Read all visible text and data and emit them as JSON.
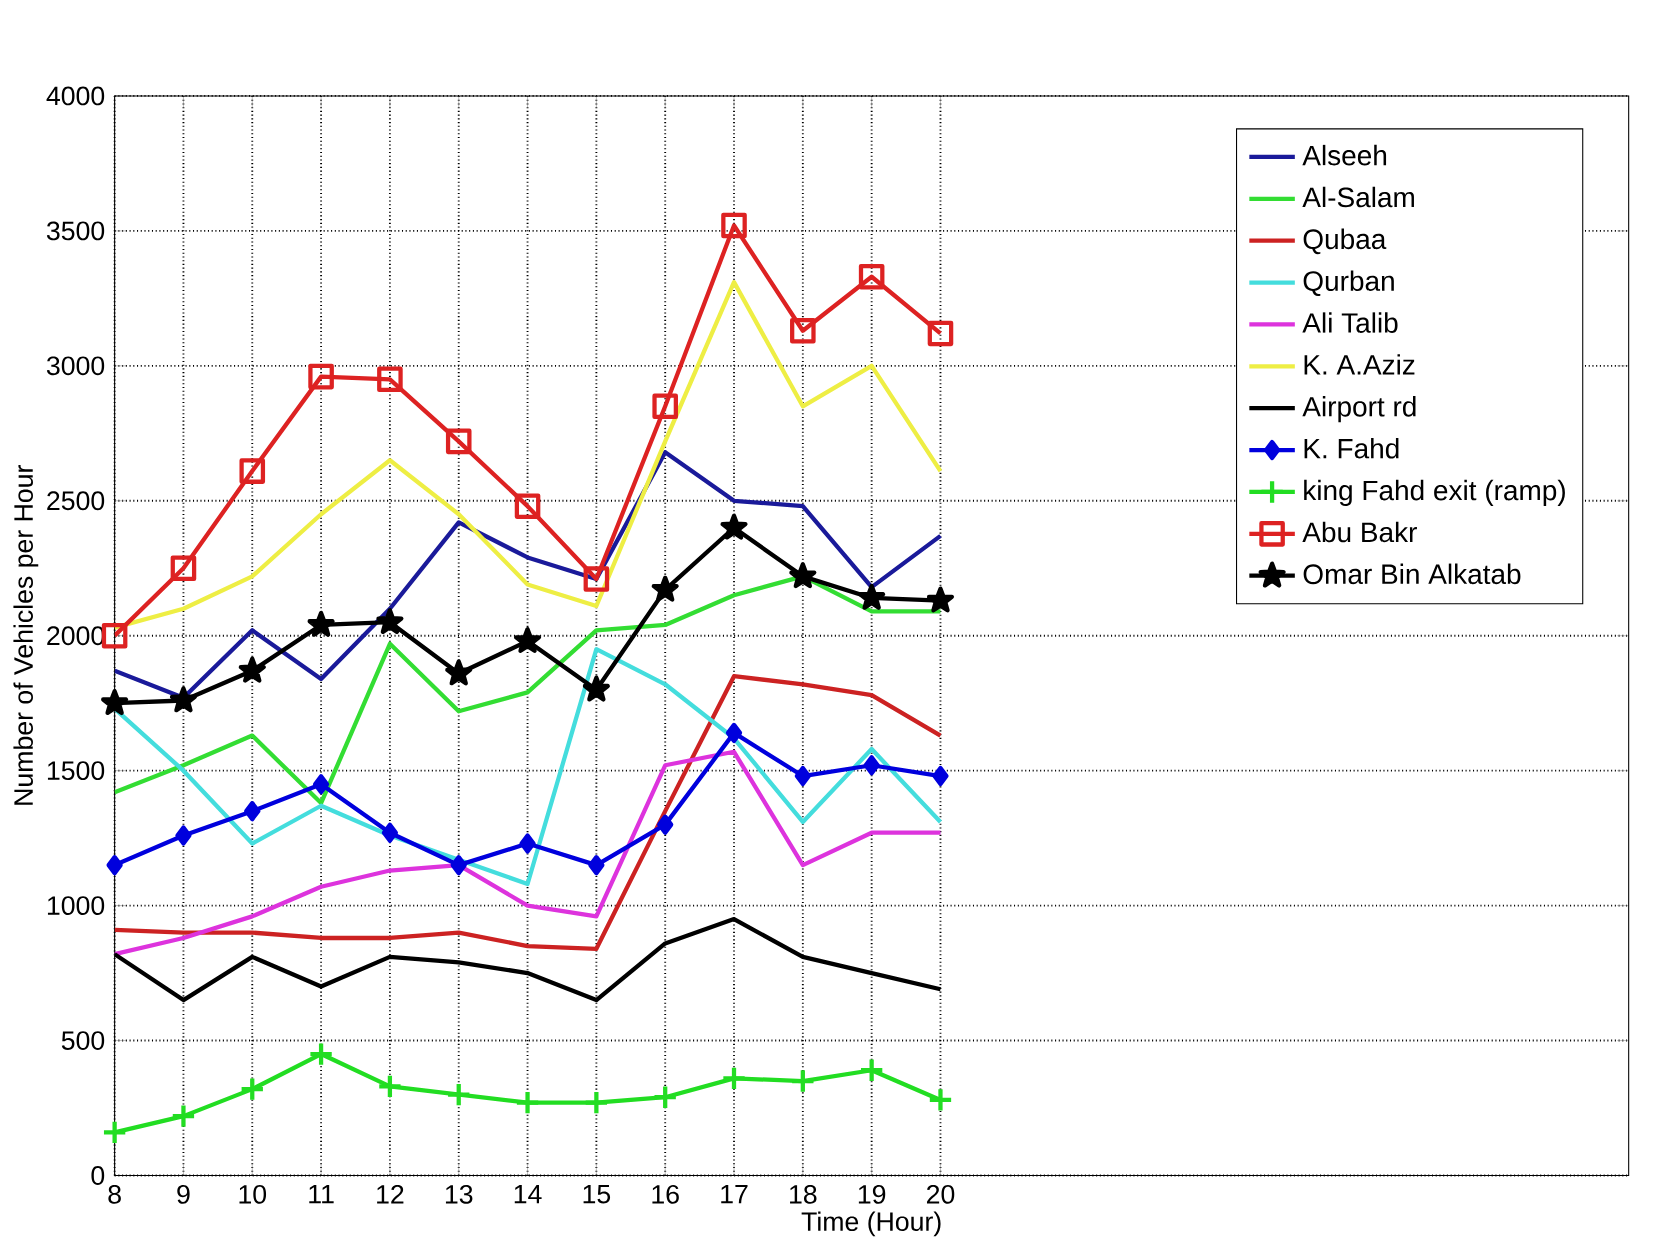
{
  "chart_data": {
    "type": "line",
    "xlabel": "Time (Hour)",
    "ylabel": "Number of Vehicles per Hour",
    "x": [
      8,
      9,
      10,
      11,
      12,
      13,
      14,
      15,
      16,
      17,
      18,
      19,
      20
    ],
    "xlim": [
      8,
      30
    ],
    "ylim": [
      0,
      4000
    ],
    "xticks": [
      8,
      9,
      10,
      11,
      12,
      13,
      14,
      15,
      16,
      17,
      18,
      19,
      20
    ],
    "yticks": [
      0,
      500,
      1000,
      1500,
      2000,
      2500,
      3000,
      3500,
      4000
    ],
    "grid": true,
    "legend": "top right",
    "line_style": "solid",
    "series": [
      {
        "name": "Alseeh",
        "color": "#1a1a9a",
        "marker": "none",
        "values": [
          1870,
          1770,
          2020,
          1840,
          2100,
          2420,
          2290,
          2210,
          2680,
          2500,
          2480,
          2180,
          2370
        ]
      },
      {
        "name": "Al-Salam",
        "color": "#33dd33",
        "marker": "none",
        "values": [
          1420,
          1520,
          1630,
          1380,
          1970,
          1720,
          1790,
          2020,
          2040,
          2150,
          2220,
          2090,
          2090
        ]
      },
      {
        "name": "Qubaa",
        "color": "#cc2222",
        "marker": "none",
        "values": [
          910,
          900,
          900,
          880,
          880,
          900,
          850,
          840,
          1350,
          1850,
          1820,
          1780,
          1630
        ]
      },
      {
        "name": "Qurban",
        "color": "#44dddd",
        "marker": "none",
        "values": [
          1730,
          1500,
          1230,
          1370,
          1260,
          1170,
          1080,
          1950,
          1820,
          1620,
          1310,
          1580,
          1310
        ]
      },
      {
        "name": "Ali Talib",
        "color": "#dd33dd",
        "marker": "none",
        "values": [
          820,
          880,
          960,
          1070,
          1130,
          1150,
          1000,
          960,
          1520,
          1570,
          1150,
          1270,
          1270
        ]
      },
      {
        "name": "K. A.Aziz",
        "color": "#eeee44",
        "marker": "none",
        "values": [
          2030,
          2100,
          2220,
          2450,
          2650,
          2450,
          2190,
          2110,
          2720,
          3310,
          2850,
          3000,
          2610
        ]
      },
      {
        "name": "Airport rd",
        "color": "#000000",
        "marker": "none",
        "values": [
          820,
          650,
          810,
          700,
          810,
          790,
          750,
          650,
          860,
          950,
          810,
          750,
          690
        ]
      },
      {
        "name": "K. Fahd",
        "color": "#0000dd",
        "marker": "diamond",
        "values": [
          1150,
          1260,
          1350,
          1450,
          1270,
          1150,
          1230,
          1150,
          1300,
          1640,
          1480,
          1520,
          1480
        ]
      },
      {
        "name": "king Fahd exit (ramp)",
        "color": "#22dd22",
        "marker": "cross",
        "values": [
          160,
          220,
          320,
          450,
          330,
          300,
          270,
          270,
          290,
          360,
          350,
          390,
          280
        ]
      },
      {
        "name": "Abu Bakr",
        "color": "#dd2222",
        "marker": "square",
        "values": [
          2000,
          2250,
          2610,
          2960,
          2950,
          2720,
          2480,
          2210,
          2850,
          3520,
          3130,
          3330,
          3120
        ]
      },
      {
        "name": "Omar Bin Alkatab",
        "color": "#000000",
        "marker": "star",
        "values": [
          1750,
          1760,
          1870,
          2040,
          2050,
          1860,
          1980,
          1800,
          2170,
          2400,
          2220,
          2140,
          2130
        ]
      }
    ]
  }
}
